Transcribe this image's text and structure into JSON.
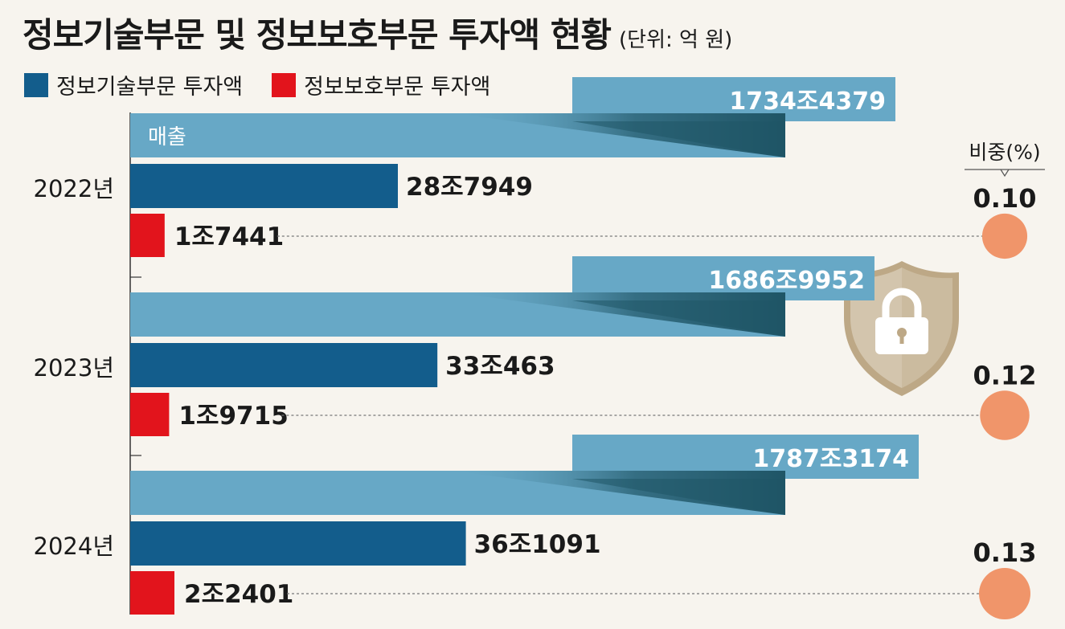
{
  "title": "정보기술부문 및 정보보호부문 투자액 현황",
  "unit": "(단위: 억 원)",
  "legend": [
    {
      "label": "정보기술부문 투자액",
      "color": "#135d8c"
    },
    {
      "label": "정보보호부문 투자액",
      "color": "#e2141c"
    }
  ],
  "colors": {
    "revenue": "#67a8c6",
    "revenue_shadow": "#1f5566",
    "it": "#135d8c",
    "security": "#e2141c",
    "ratio": "#f0956a",
    "shield": "#d3c5ad",
    "shield_dark": "#bda886"
  },
  "chart_data": {
    "type": "bar",
    "categories": [
      "2022년",
      "2023년",
      "2024년"
    ],
    "series": [
      {
        "name": "매출",
        "values": [
          17344379,
          16869952,
          17873174
        ],
        "labels": [
          "1734조4379",
          "1686조9952",
          "1787조3174"
        ]
      },
      {
        "name": "정보기술부문 투자액",
        "values": [
          287949,
          330463,
          361091
        ],
        "labels": [
          "28조7949",
          "33조463",
          "36조1091"
        ]
      },
      {
        "name": "정보보호부문 투자액",
        "values": [
          17441,
          19715,
          22401
        ],
        "labels": [
          "1조7441",
          "1조9715",
          "2조2401"
        ]
      }
    ],
    "ratio": {
      "title": "비중(%)",
      "values": [
        0.1,
        0.12,
        0.13
      ],
      "labels": [
        "0.10",
        "0.12",
        "0.13"
      ]
    }
  }
}
